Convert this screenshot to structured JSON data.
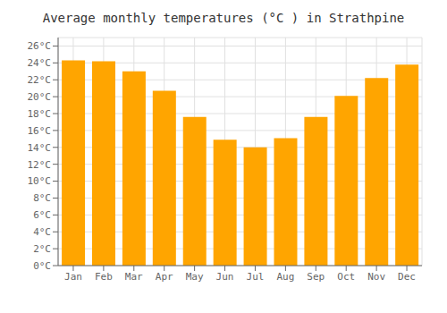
{
  "chart_data": {
    "type": "bar",
    "title": "Average monthly temperatures (°C ) in Strathpine",
    "categories": [
      "Jan",
      "Feb",
      "Mar",
      "Apr",
      "May",
      "Jun",
      "Jul",
      "Aug",
      "Sep",
      "Oct",
      "Nov",
      "Dec"
    ],
    "values": [
      24.3,
      24.2,
      23.0,
      20.7,
      17.6,
      14.9,
      14.0,
      15.1,
      17.6,
      20.1,
      22.2,
      23.8
    ],
    "color": "#FFA500",
    "ylim": [
      0,
      27
    ],
    "yticks": [
      {
        "value": 0,
        "label": "0°C"
      },
      {
        "value": 2,
        "label": "2°C"
      },
      {
        "value": 4,
        "label": "4°C"
      },
      {
        "value": 6,
        "label": "6°C"
      },
      {
        "value": 8,
        "label": "8°C"
      },
      {
        "value": 10,
        "label": "10°C"
      },
      {
        "value": 12,
        "label": "12°C"
      },
      {
        "value": 14,
        "label": "14°C"
      },
      {
        "value": 16,
        "label": "16°C"
      },
      {
        "value": 18,
        "label": "18°C"
      },
      {
        "value": 20,
        "label": "20°C"
      },
      {
        "value": 22,
        "label": "22°C"
      },
      {
        "value": 24,
        "label": "24°C"
      },
      {
        "value": 26,
        "label": "26°C"
      }
    ],
    "grid": true
  }
}
